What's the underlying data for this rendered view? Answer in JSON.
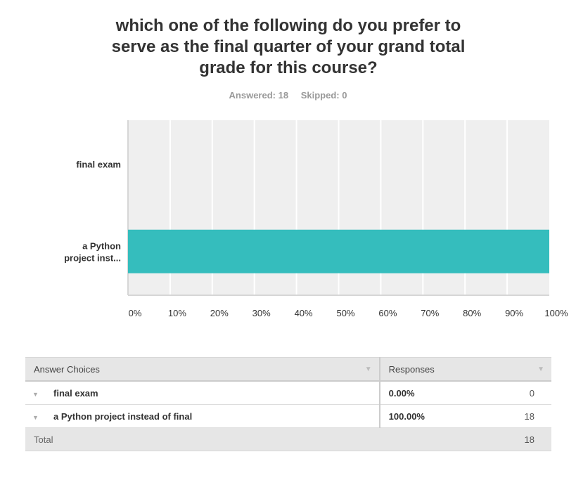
{
  "question": {
    "title": "which one of the following do you prefer to serve as the final quarter of your grand total grade for this course?",
    "answered_label": "Answered: 18",
    "skipped_label": "Skipped: 0"
  },
  "chart_data": {
    "type": "bar",
    "orientation": "horizontal",
    "categories": [
      "final exam",
      "a Python project inst..."
    ],
    "values": [
      0,
      100
    ],
    "x_ticks": [
      "0%",
      "10%",
      "20%",
      "30%",
      "40%",
      "50%",
      "60%",
      "70%",
      "80%",
      "90%",
      "100%"
    ],
    "xlim": [
      0,
      100
    ],
    "bar_color": "#35bdbd",
    "plot_background": "#efefef",
    "grid": true
  },
  "table": {
    "headers": {
      "choice": "Answer Choices",
      "responses": "Responses"
    },
    "rows": [
      {
        "choice": "final exam",
        "percent": "0.00%",
        "count": "0"
      },
      {
        "choice": "a Python project instead of final",
        "percent": "100.00%",
        "count": "18"
      }
    ],
    "total_label": "Total",
    "total_count": "18"
  }
}
